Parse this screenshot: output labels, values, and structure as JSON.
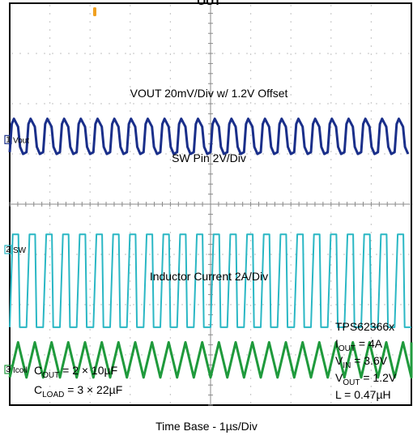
{
  "chart_data": {
    "type": "line",
    "title": "OUT",
    "xlabel": "Time Base - 1µs/Div",
    "ylabel": "",
    "divisions": {
      "x": 10,
      "y": 8
    },
    "grid": true,
    "x_range_divisions": [
      0,
      10
    ],
    "cycles_shown": 24,
    "series": [
      {
        "name": "VOUT 20mV/Div w/ 1.2V Offset",
        "channel": "Vout",
        "color": "#1a2f8a",
        "shape": "ripple",
        "center_div": 5.35,
        "amplitude_div": 0.35
      },
      {
        "name": "SW Pin 2V/Div",
        "channel": "SW",
        "color": "#2ab7c4",
        "shape": "square",
        "high_div": 3.4,
        "low_div": 1.55
      },
      {
        "name": "Inductor Current 2A/Div",
        "channel": "Icoil",
        "color": "#1f9a3c",
        "shape": "triangle",
        "center_div": 0.9,
        "amplitude_div": 0.35
      }
    ],
    "annotations": {
      "left_box": [
        {
          "main": "C",
          "sub": "OUT",
          "rest": " = 2 × 10µF"
        },
        {
          "main": "C",
          "sub": "LOAD",
          "rest": " = 3 × 22µF"
        }
      ],
      "right_box": [
        {
          "main": "TPS62366x",
          "sub": "",
          "rest": ""
        },
        {
          "main": "I",
          "sub": "OUT",
          "rest": " = 4A"
        },
        {
          "main": "V",
          "sub": "IN",
          "rest": " = 3.6V"
        },
        {
          "main": "V",
          "sub": "OUT",
          "rest": " = 1.2V"
        },
        {
          "main": "L = 0.47µH",
          "sub": "",
          "rest": ""
        }
      ]
    },
    "channel_markers": [
      {
        "num": "1",
        "label": "Vout",
        "color": "#1a2f8a"
      },
      {
        "num": "2",
        "label": "SW",
        "color": "#2ab7c4"
      },
      {
        "num": "3",
        "label": "Icoil",
        "color": "#1f9a3c"
      }
    ],
    "trigger_marker_color": "#f0a020"
  }
}
